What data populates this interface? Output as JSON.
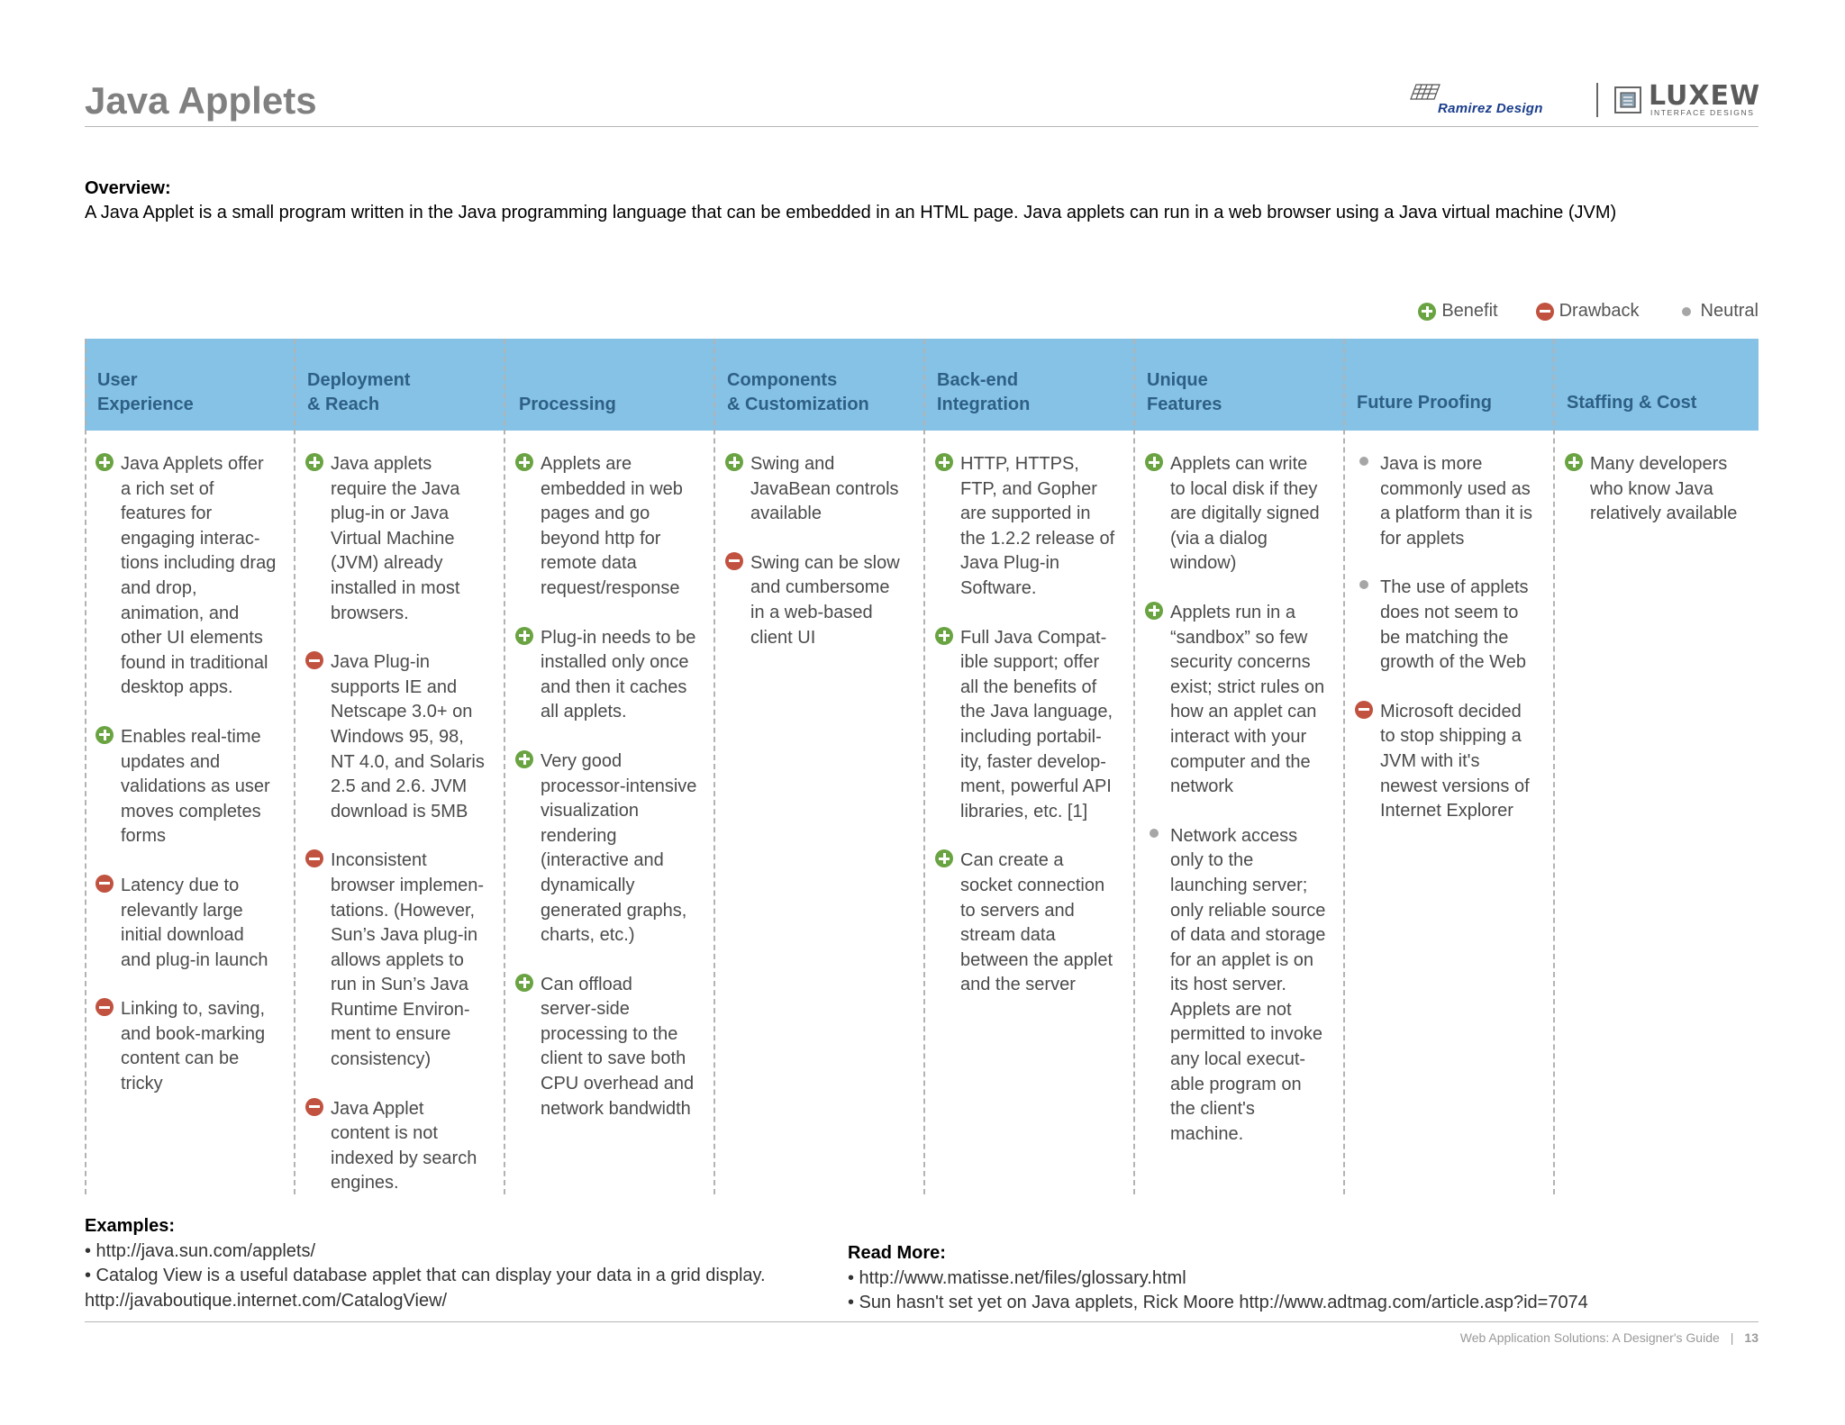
{
  "header": {
    "title": "Java Applets",
    "logo_ramirez": "Ramirez Design",
    "logo_luxew": "LUXEW",
    "logo_luxew_sub": "INTERFACE DESIGNS"
  },
  "overview": {
    "title": "Overview:",
    "text": "A Java Applet is a small program written in the Java programming language that can be embedded in an HTML page. Java applets can run in a web browser using a Java virtual machine (JVM)"
  },
  "legend": {
    "benefit": "Benefit",
    "drawback": "Drawback",
    "neutral": "Neutral"
  },
  "columns": [
    {
      "header": "User\nExperience",
      "items": [
        {
          "type": "benefit",
          "text": "Java Applets offer\na rich set of\nfeatures for\nengaging interac-\ntions including drag\nand drop,\nanimation, and\nother UI elements\nfound in traditional\ndesktop apps."
        },
        {
          "type": "benefit",
          "text": "Enables real-time\nupdates and\nvalidations as user\nmoves completes\nforms"
        },
        {
          "type": "drawback",
          "text": "Latency due to\nrelevantly large\ninitial download\nand plug-in launch"
        },
        {
          "type": "drawback",
          "text": "Linking to, saving,\nand book-marking\ncontent can be\ntricky"
        }
      ]
    },
    {
      "header": "Deployment\n& Reach",
      "items": [
        {
          "type": "benefit",
          "text": "Java applets\nrequire the Java\nplug-in or Java\nVirtual Machine\n(JVM) already\ninstalled in most\nbrowsers."
        },
        {
          "type": "drawback",
          "text": "Java Plug-in\nsupports IE and\nNetscape 3.0+ on\nWindows 95, 98,\nNT 4.0, and Solaris\n2.5 and 2.6. JVM\ndownload is 5MB"
        },
        {
          "type": "drawback",
          "text": "Inconsistent\nbrowser implemen-\ntations. (However,\nSun’s Java plug-in\nallows applets to\nrun in Sun’s Java\nRuntime Environ-\nment to ensure\nconsistency)"
        },
        {
          "type": "drawback",
          "text": "Java Applet\ncontent is not\nindexed by search\nengines."
        }
      ]
    },
    {
      "header": "Processing",
      "items": [
        {
          "type": "benefit",
          "text": "Applets are\nembedded in web\npages and go\nbeyond http for\nremote data\nrequest/response"
        },
        {
          "type": "benefit",
          "text": "Plug-in needs to be\ninstalled only once\nand then it caches\nall applets."
        },
        {
          "type": "benefit",
          "text": "Very good\nprocessor-intensive\nvisualization\nrendering\n(interactive and\ndynamically\ngenerated graphs,\ncharts, etc.)"
        },
        {
          "type": "benefit",
          "text": "Can offload\nserver-side\nprocessing to the\nclient to save both\nCPU overhead and\nnetwork bandwidth"
        }
      ]
    },
    {
      "header": "Components\n& Customization",
      "items": [
        {
          "type": "benefit",
          "text": "Swing and\nJavaBean controls\navailable"
        },
        {
          "type": "drawback",
          "text": "Swing can be slow\nand cumbersome\nin a web-based\nclient UI"
        }
      ]
    },
    {
      "header": "Back-end\nIntegration",
      "items": [
        {
          "type": "benefit",
          "text": "HTTP, HTTPS,\nFTP, and Gopher\nare supported in\nthe 1.2.2 release of\nJava Plug-in\nSoftware."
        },
        {
          "type": "benefit",
          "text": "Full Java Compat-\nible support; offer\nall the benefits of\nthe Java language,\nincluding portabil-\nity, faster develop-\nment, powerful API\nlibraries, etc. [1]"
        },
        {
          "type": "benefit",
          "text": "Can create a\nsocket connection\nto servers and\nstream data\nbetween the applet\nand the server"
        }
      ]
    },
    {
      "header": "Unique\nFeatures",
      "items": [
        {
          "type": "benefit",
          "text": "Applets can write\nto local disk if they\nare digitally signed\n(via a dialog\nwindow)"
        },
        {
          "type": "benefit",
          "text": "Applets run in a\n“sandbox” so few\nsecurity concerns\nexist; strict rules on\nhow an applet can\ninteract with your\ncomputer and the\nnetwork"
        },
        {
          "type": "neutral",
          "text": "Network access\nonly to the\nlaunching server;\nonly reliable source\nof data and storage\nfor an applet is on\nits host server.\nApplets are not\npermitted to invoke\nany local execut-\nable program on\nthe client's\nmachine."
        }
      ]
    },
    {
      "header": "Future Proofing",
      "items": [
        {
          "type": "neutral",
          "text": "Java is more\ncommonly used as\na platform than it is\nfor applets"
        },
        {
          "type": "neutral",
          "text": "The use of applets\ndoes not seem to\nbe matching the\ngrowth of the Web"
        },
        {
          "type": "drawback",
          "text": "Microsoft decided\nto stop shipping a\nJVM with it's\nnewest versions of\nInternet Explorer"
        }
      ]
    },
    {
      "header": "Staffing & Cost",
      "items": [
        {
          "type": "benefit",
          "text": "Many developers\nwho know Java\nrelatively available"
        }
      ]
    }
  ],
  "examples": {
    "title": "Examples:",
    "line1": "• http://java.sun.com/applets/",
    "line2": "• Catalog View is a useful database applet that can display your data in a grid display.",
    "line3": "http://javaboutique.internet.com/CatalogView/"
  },
  "read_more": {
    "title": "Read More:",
    "line1": "• http://www.matisse.net/files/glossary.html",
    "line2": "• Sun hasn't set yet on Java applets, Rick Moore http://www.adtmag.com/article.asp?id=7074"
  },
  "footer": {
    "text": "Web Application Solutions: A Designer's Guide",
    "separator": "|",
    "page_number": "13"
  },
  "colors": {
    "header_bar": "#85c2e5",
    "header_text": "#2e5f85",
    "benefit": "#6aa342",
    "drawback": "#c0523f",
    "neutral": "#a6a6a6"
  }
}
